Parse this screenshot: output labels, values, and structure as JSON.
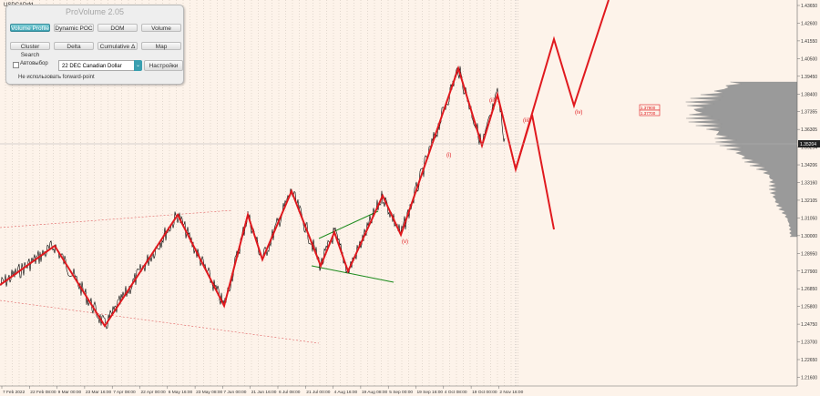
{
  "chart": {
    "symbol": "USDCADrfd",
    "price_axis": [
      "1.43650",
      "1.42600",
      "1.41550",
      "1.40500",
      "1.39450",
      "1.38400",
      "1.37355",
      "1.36305",
      "1.35254",
      "1.34206",
      "1.33160",
      "1.32105",
      "1.31050",
      "1.30000",
      "1.28950",
      "1.27900",
      "1.26850",
      "1.25800",
      "1.24750",
      "1.23700",
      "1.22650",
      "1.21600"
    ],
    "current_price": "1.35204",
    "level_labels": [
      "1.37900",
      "1.37700"
    ],
    "time_axis": [
      "7 Feb 2022",
      "22 Feb 08:00",
      "9 Mar 00:00",
      "23 Mar 16:00",
      "7 Apr 08:00",
      "22 Apr 00:00",
      "6 May 16:00",
      "23 May 08:00",
      "7 Jun 00:00",
      "21 Jun 16:00",
      "6 Jul 08:00",
      "21 Jul 00:00",
      "4 Aug 16:00",
      "19 Aug 08:00",
      "5 Sep 00:00",
      "19 Sep 16:00",
      "4 Oct 08:00",
      "19 Oct 00:00",
      "2 Nov 16:00"
    ],
    "wave_labels": [
      "(i)",
      "(ii)",
      "(iii)",
      "(iv)",
      "(v)"
    ],
    "colors": {
      "background": "#fdf3ea",
      "wave": "#e0191e",
      "price": "#000000",
      "channel": "#1a8a1a",
      "profile": "#9a9a9a",
      "panel_active": "#3a9fb0"
    }
  },
  "panel": {
    "title": "ProVolume 2.05",
    "buttons": [
      "Volume Profile",
      "Dynamic POC",
      "DOM",
      "Volume",
      "Cluster Search",
      "Delta",
      "Cumulative Δ",
      "Map"
    ],
    "active_button": "Volume Profile",
    "auto_label": "Автовыбор",
    "instrument": "22 DEC Canadian Dollar",
    "settings_label": "Настройки",
    "forward_point_label": "Не использовать forward-point"
  }
}
